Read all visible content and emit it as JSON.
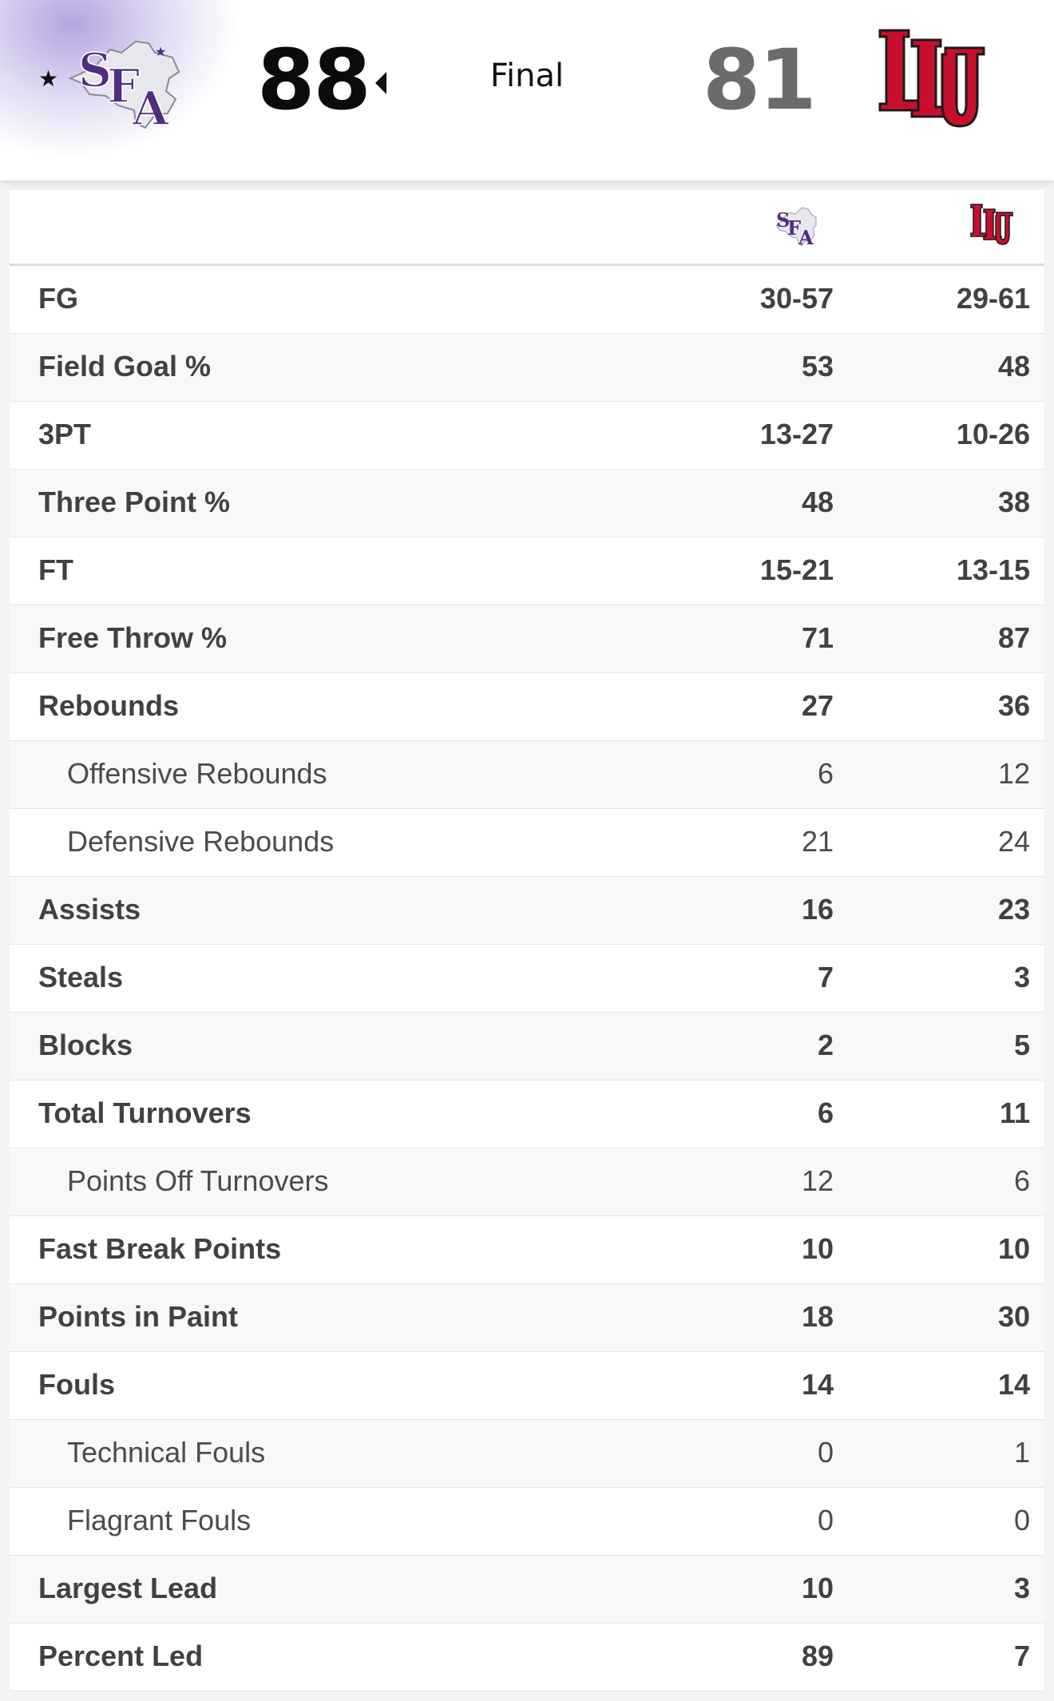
{
  "game": {
    "home_score": "88",
    "away_score": "81",
    "status": "Final",
    "winner_marker": "★",
    "colors": {
      "home": "#4f2d7f",
      "away": "#c8102e"
    }
  },
  "stats": [
    {
      "label": "FG",
      "home": "30-57",
      "away": "29-61",
      "sub": false
    },
    {
      "label": "Field Goal %",
      "home": "53",
      "away": "48",
      "sub": false
    },
    {
      "label": "3PT",
      "home": "13-27",
      "away": "10-26",
      "sub": false
    },
    {
      "label": "Three Point %",
      "home": "48",
      "away": "38",
      "sub": false
    },
    {
      "label": "FT",
      "home": "15-21",
      "away": "13-15",
      "sub": false
    },
    {
      "label": "Free Throw %",
      "home": "71",
      "away": "87",
      "sub": false
    },
    {
      "label": "Rebounds",
      "home": "27",
      "away": "36",
      "sub": false
    },
    {
      "label": "Offensive Rebounds",
      "home": "6",
      "away": "12",
      "sub": true
    },
    {
      "label": "Defensive Rebounds",
      "home": "21",
      "away": "24",
      "sub": true
    },
    {
      "label": "Assists",
      "home": "16",
      "away": "23",
      "sub": false
    },
    {
      "label": "Steals",
      "home": "7",
      "away": "3",
      "sub": false
    },
    {
      "label": "Blocks",
      "home": "2",
      "away": "5",
      "sub": false
    },
    {
      "label": "Total Turnovers",
      "home": "6",
      "away": "11",
      "sub": false
    },
    {
      "label": "Points Off Turnovers",
      "home": "12",
      "away": "6",
      "sub": true
    },
    {
      "label": "Fast Break Points",
      "home": "10",
      "away": "10",
      "sub": false
    },
    {
      "label": "Points in Paint",
      "home": "18",
      "away": "30",
      "sub": false
    },
    {
      "label": "Fouls",
      "home": "14",
      "away": "14",
      "sub": false
    },
    {
      "label": "Technical Fouls",
      "home": "0",
      "away": "1",
      "sub": true
    },
    {
      "label": "Flagrant Fouls",
      "home": "0",
      "away": "0",
      "sub": true
    },
    {
      "label": "Largest Lead",
      "home": "10",
      "away": "3",
      "sub": false
    },
    {
      "label": "Percent Led",
      "home": "89",
      "away": "7",
      "sub": false
    }
  ]
}
